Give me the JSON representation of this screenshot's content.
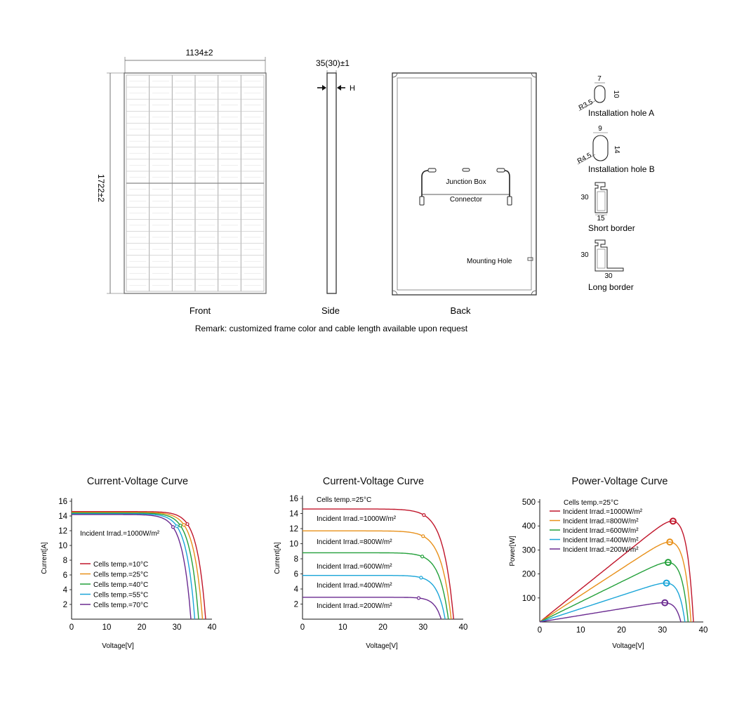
{
  "drawing": {
    "front": {
      "label": "Front",
      "width_dim": "1134±2",
      "height_dim": "1722±2"
    },
    "side": {
      "label": "Side",
      "thickness_dim": "35(30)±1",
      "h_label": "H"
    },
    "back": {
      "label": "Back",
      "junction_box": "Junction Box",
      "connector": "Connector",
      "mounting_hole": "Mounting Hole"
    },
    "details": {
      "hole_a": {
        "label": "Installation hole A",
        "w": "7",
        "h": "10",
        "r": "R3.5"
      },
      "hole_b": {
        "label": "Installation hole B",
        "w": "9",
        "h": "14",
        "r": "R4.5"
      },
      "short_border": {
        "label": "Short border",
        "h": "30",
        "w": "15"
      },
      "long_border": {
        "label": "Long border",
        "h": "30",
        "w": "30"
      }
    },
    "remark": "Remark: customized frame color and cable length available upon request"
  },
  "colors": [
    "#c0152a",
    "#e8901a",
    "#23a03a",
    "#1aa5d8",
    "#6a2a90"
  ],
  "chart_data": [
    {
      "type": "line",
      "title": "Current-Voltage Curve",
      "xlabel": "Voltage[V]",
      "ylabel": "Current[A]",
      "xlim": [
        0,
        40
      ],
      "ylim": [
        0,
        16
      ],
      "xticks": [
        "0",
        "10",
        "20",
        "30",
        "40"
      ],
      "yticks": [
        "2",
        "4",
        "6",
        "8",
        "10",
        "12",
        "14",
        "16"
      ],
      "annotation": "Incident Irrad.=1000W/m²",
      "series": [
        {
          "name": "Cells temp.=10°C",
          "isc": 14.6,
          "voc": 38.2,
          "vmp": 33.0,
          "imp": 12.9
        },
        {
          "name": "Cells temp.=25°C",
          "isc": 14.5,
          "voc": 37.3,
          "vmp": 32.0,
          "imp": 12.8
        },
        {
          "name": "Cells temp.=40°C",
          "isc": 14.4,
          "voc": 36.2,
          "vmp": 31.0,
          "imp": 12.7
        },
        {
          "name": "Cells temp.=55°C",
          "isc": 14.3,
          "voc": 35.1,
          "vmp": 30.0,
          "imp": 12.6
        },
        {
          "name": "Cells temp.=70°C",
          "isc": 14.2,
          "voc": 34.0,
          "vmp": 28.9,
          "imp": 12.5
        }
      ]
    },
    {
      "type": "line",
      "title": "Current-Voltage Curve",
      "xlabel": "Voltage[V]",
      "ylabel": "Current[A]",
      "xlim": [
        0,
        40
      ],
      "ylim": [
        0,
        16
      ],
      "xticks": [
        "0",
        "10",
        "20",
        "30",
        "40"
      ],
      "yticks": [
        "2",
        "4",
        "6",
        "8",
        "10",
        "12",
        "14",
        "16"
      ],
      "annotation": "Cells temp.=25°C",
      "series": [
        {
          "name": "Incident Irrad.=1000W/m²",
          "isc": 14.6,
          "voc": 37.6,
          "vmp": 30.2,
          "imp": 13.8
        },
        {
          "name": "Incident Irrad.=800W/m²",
          "isc": 11.7,
          "voc": 37.0,
          "vmp": 30.0,
          "imp": 11.0
        },
        {
          "name": "Incident Irrad.=600W/m²",
          "isc": 8.8,
          "voc": 36.3,
          "vmp": 29.8,
          "imp": 8.3
        },
        {
          "name": "Incident Irrad.=400W/m²",
          "isc": 5.8,
          "voc": 35.5,
          "vmp": 29.5,
          "imp": 5.5
        },
        {
          "name": "Incident Irrad.=200W/m²",
          "isc": 2.9,
          "voc": 34.5,
          "vmp": 28.9,
          "imp": 2.8
        }
      ]
    },
    {
      "type": "line",
      "title": "Power-Voltage Curve",
      "xlabel": "Voltage[V]",
      "ylabel": "Power[W]",
      "xlim": [
        0,
        40
      ],
      "ylim": [
        0,
        500
      ],
      "xticks": [
        "0",
        "10",
        "20",
        "30",
        "40"
      ],
      "yticks": [
        "100",
        "200",
        "300",
        "400",
        "500"
      ],
      "annotation": "Cells temp.=25°C",
      "series": [
        {
          "name": "Incident Irrad.=1000W/m²",
          "voc": 37.6,
          "vmp": 32.6,
          "pmax": 420
        },
        {
          "name": "Incident Irrad.=800W/m²",
          "voc": 37.0,
          "vmp": 31.8,
          "pmax": 333
        },
        {
          "name": "Incident Irrad.=600W/m²",
          "voc": 36.3,
          "vmp": 31.4,
          "pmax": 248
        },
        {
          "name": "Incident Irrad.=400W/m²",
          "voc": 35.5,
          "vmp": 31.0,
          "pmax": 162
        },
        {
          "name": "Incident Irrad.=200W/m²",
          "voc": 34.5,
          "vmp": 30.6,
          "pmax": 80
        }
      ]
    }
  ]
}
